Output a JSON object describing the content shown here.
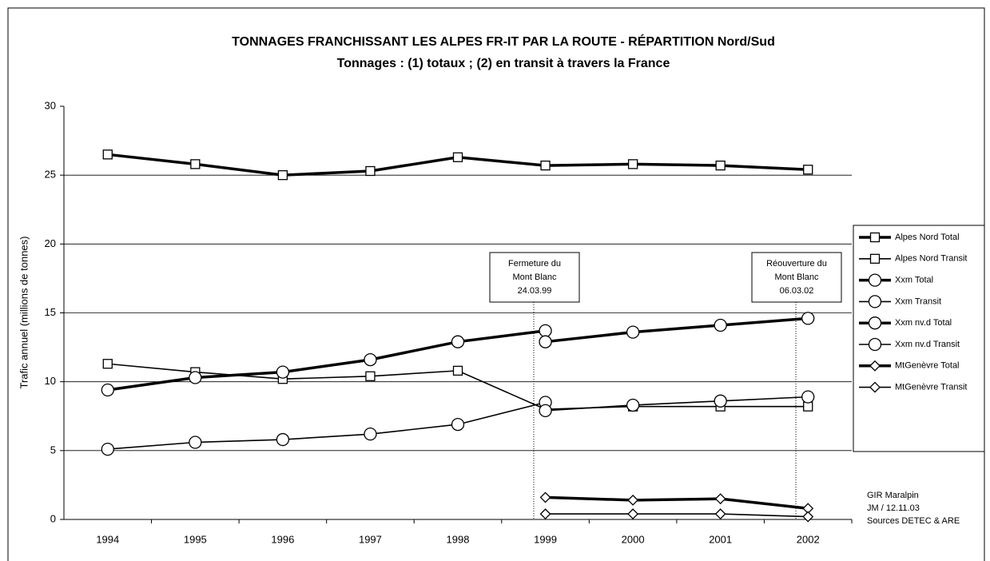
{
  "chart_data": {
    "type": "line",
    "title": "TONNAGES FRANCHISSANT LES ALPES FR-IT PAR LA ROUTE - RÉPARTITION Nord/Sud",
    "subtitle": "Tonnages : (1) totaux ; (2) en transit à travers la France",
    "y_label": "Trafic annuel (millions de tonnes)",
    "categories": [
      "1994",
      "1995",
      "1996",
      "1997",
      "1998",
      "1999",
      "2000",
      "2001",
      "2002"
    ],
    "ylim": [
      0,
      30
    ],
    "yticks": [
      0,
      5,
      10,
      15,
      20,
      25,
      30
    ],
    "grid": true,
    "legend": "right",
    "series": [
      {
        "name": "Alpes Nord Total",
        "color": "#000000",
        "marker": "square",
        "line": "thick",
        "values": [
          26.5,
          25.8,
          25.0,
          25.3,
          26.3,
          25.7,
          25.8,
          25.7,
          25.4
        ]
      },
      {
        "name": "Alpes Nord Transit",
        "color": "#000000",
        "marker": "square",
        "line": "thin",
        "values": [
          11.3,
          10.7,
          10.2,
          10.4,
          10.8,
          8.0,
          8.2,
          8.2,
          8.2
        ]
      },
      {
        "name": "Xxm Total",
        "color": "#000000",
        "marker": "circle",
        "line": "thick",
        "values": [
          9.4,
          10.3,
          10.7,
          11.6,
          12.9,
          13.7,
          null,
          null,
          null
        ]
      },
      {
        "name": "Xxm Transit",
        "color": "#000000",
        "marker": "circle",
        "line": "thin",
        "values": [
          5.1,
          5.6,
          5.8,
          6.2,
          6.9,
          8.5,
          null,
          null,
          null
        ]
      },
      {
        "name": "Xxm nv.d Total",
        "color": "#000000",
        "marker": "circle",
        "line": "thick",
        "values": [
          null,
          null,
          null,
          null,
          null,
          12.9,
          13.6,
          14.1,
          14.6
        ]
      },
      {
        "name": "Xxm nv.d Transit",
        "color": "#000000",
        "marker": "circle",
        "line": "thin",
        "values": [
          null,
          null,
          null,
          null,
          null,
          7.9,
          8.3,
          8.6,
          8.9
        ]
      },
      {
        "name": "MtGenèvre Total",
        "color": "#000000",
        "marker": "diamond",
        "line": "thick",
        "values": [
          null,
          null,
          null,
          null,
          null,
          1.6,
          1.4,
          1.5,
          0.8
        ]
      },
      {
        "name": "MtGenèvre Transit",
        "color": "#000000",
        "marker": "diamond",
        "line": "thin",
        "values": [
          null,
          null,
          null,
          null,
          null,
          0.4,
          0.4,
          0.4,
          0.2
        ]
      }
    ],
    "annotations": [
      {
        "lines": [
          "Fermeture du",
          "Mont Blanc",
          "24.03.99"
        ]
      },
      {
        "lines": [
          "Réouverture du",
          "Mont Blanc",
          "06.03.02"
        ]
      }
    ],
    "source": [
      "GIR Maralpin",
      "JM / 12.11.03",
      "Sources DETEC & ARE"
    ]
  }
}
